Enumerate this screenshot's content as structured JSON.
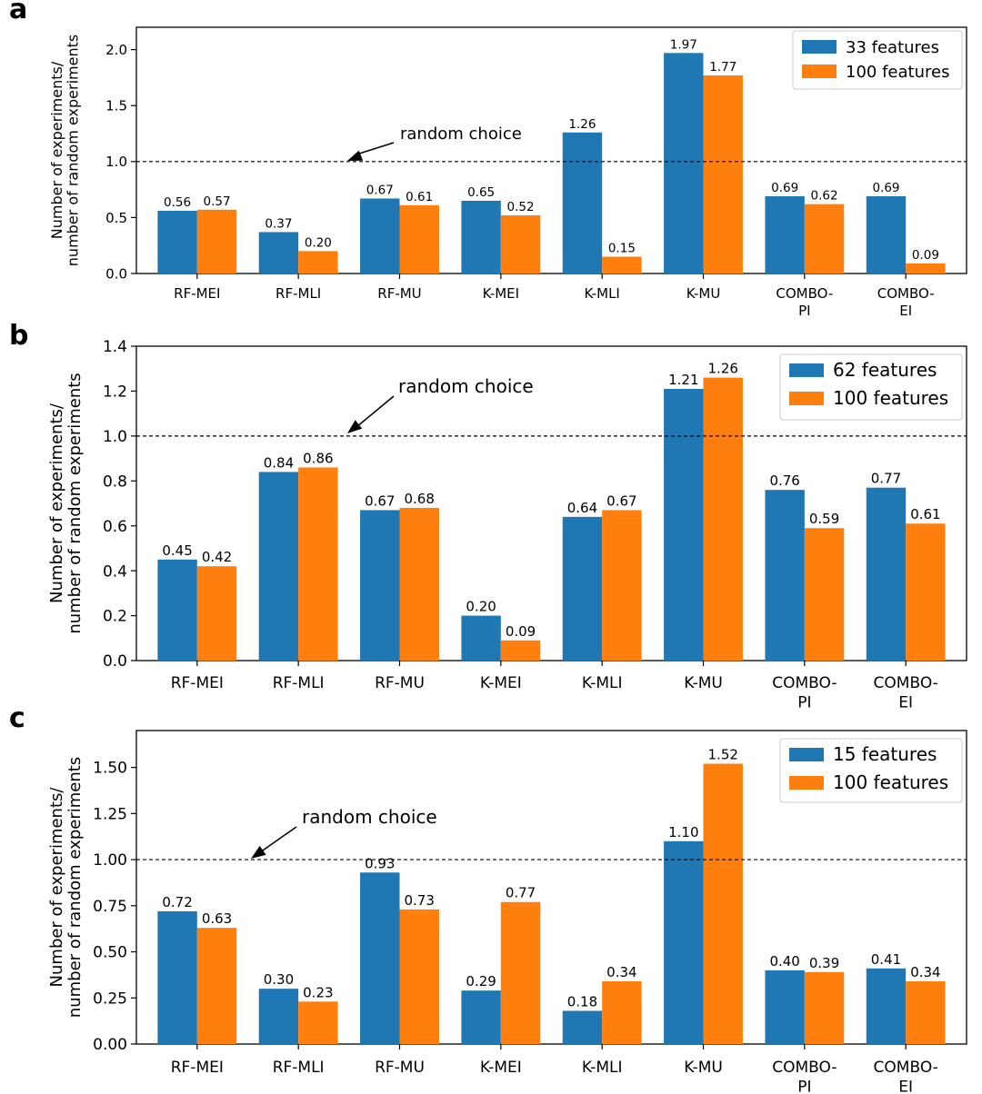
{
  "chart_data": [
    {
      "panel": "a",
      "type": "bar",
      "ylabel": [
        "Number of experiments/",
        "number of random experiments"
      ],
      "ylim": [
        0,
        2.2
      ],
      "yticks": [
        "0.0",
        "0.5",
        "1.0",
        "1.5",
        "2.0"
      ],
      "categories": [
        "RF-MEI",
        "RF-MLI",
        "RF-MU",
        "K-MEI",
        "K-MLI",
        "K-MU",
        "COMBO-\nPI",
        "COMBO-\nEI"
      ],
      "series": [
        {
          "name": "33 features",
          "color": "#1f77b4",
          "values": [
            0.56,
            0.37,
            0.67,
            0.65,
            1.26,
            1.97,
            0.69,
            0.69
          ],
          "labels": [
            "0.56",
            "0.37",
            "0.67",
            "0.65",
            "1.26",
            "1.97",
            "0.69",
            "0.69"
          ]
        },
        {
          "name": "100 features",
          "color": "#ff7f0e",
          "values": [
            0.57,
            0.2,
            0.61,
            0.52,
            0.15,
            1.77,
            0.62,
            0.09
          ],
          "labels": [
            "0.57",
            "0.20",
            "0.61",
            "0.52",
            "0.15",
            "1.77",
            "0.62",
            "0.09"
          ]
        }
      ],
      "reference_line": {
        "y": 1.0,
        "label": "random choice"
      },
      "legend": "top-right"
    },
    {
      "panel": "b",
      "type": "bar",
      "ylabel": [
        "Number of experiments/",
        "number of random experiments"
      ],
      "ylim": [
        0,
        1.4
      ],
      "yticks": [
        "0.0",
        "0.2",
        "0.4",
        "0.6",
        "0.8",
        "1.0",
        "1.2",
        "1.4"
      ],
      "categories": [
        "RF-MEI",
        "RF-MLI",
        "RF-MU",
        "K-MEI",
        "K-MLI",
        "K-MU",
        "COMBO-\nPI",
        "COMBO-\nEI"
      ],
      "series": [
        {
          "name": "62 features",
          "color": "#1f77b4",
          "values": [
            0.45,
            0.84,
            0.67,
            0.2,
            0.64,
            1.21,
            0.76,
            0.77
          ],
          "labels": [
            "0.45",
            "0.84",
            "0.67",
            "0.20",
            "0.64",
            "1.21",
            "0.76",
            "0.77"
          ]
        },
        {
          "name": "100 features",
          "color": "#ff7f0e",
          "values": [
            0.42,
            0.86,
            0.68,
            0.09,
            0.67,
            1.26,
            0.59,
            0.61
          ],
          "labels": [
            "0.42",
            "0.86",
            "0.68",
            "0.09",
            "0.67",
            "1.26",
            "0.59",
            "0.61"
          ]
        }
      ],
      "reference_line": {
        "y": 1.0,
        "label": "random choice"
      },
      "legend": "top-right"
    },
    {
      "panel": "c",
      "type": "bar",
      "ylabel": [
        "Number of experiments/",
        "number of random experiments"
      ],
      "ylim": [
        0,
        1.7
      ],
      "yticks": [
        "0.00",
        "0.25",
        "0.50",
        "0.75",
        "1.00",
        "1.25",
        "1.50"
      ],
      "categories": [
        "RF-MEI",
        "RF-MLI",
        "RF-MU",
        "K-MEI",
        "K-MLI",
        "K-MU",
        "COMBO-\nPI",
        "COMBO-\nEI"
      ],
      "series": [
        {
          "name": "15 features",
          "color": "#1f77b4",
          "values": [
            0.72,
            0.3,
            0.93,
            0.29,
            0.18,
            1.1,
            0.4,
            0.41
          ],
          "labels": [
            "0.72",
            "0.30",
            "0.93",
            "0.29",
            "0.18",
            "1.10",
            "0.40",
            "0.41"
          ]
        },
        {
          "name": "100 features",
          "color": "#ff7f0e",
          "values": [
            0.63,
            0.23,
            0.73,
            0.77,
            0.34,
            1.52,
            0.39,
            0.34
          ],
          "labels": [
            "0.63",
            "0.23",
            "0.73",
            "0.77",
            "0.34",
            "1.52",
            "0.39",
            "0.34"
          ]
        }
      ],
      "reference_line": {
        "y": 1.0,
        "label": "random choice"
      },
      "legend": "top-right"
    }
  ]
}
